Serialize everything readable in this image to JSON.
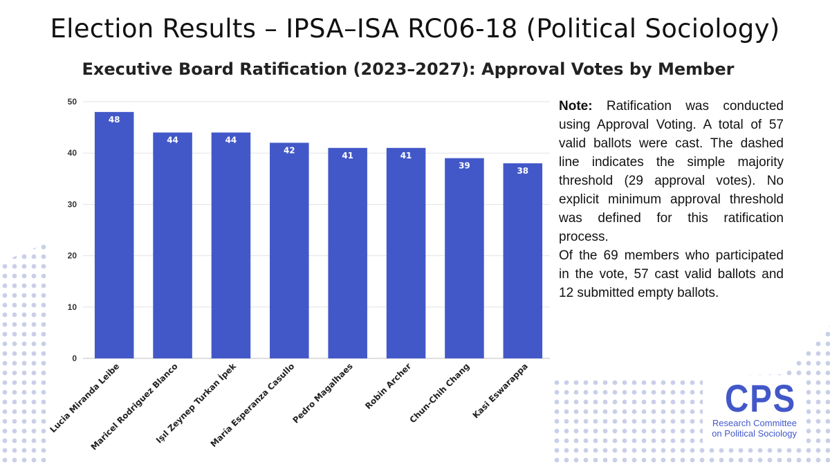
{
  "header": {
    "title": "Election Results – IPSA–ISA RC06-18 (Political Sociology)",
    "subtitle": "Executive Board Ratification (2023–2027): Approval Votes by Member"
  },
  "note": {
    "lead": "Note:",
    "paragraph_1": "Ratification was conducted using Approval Voting. A total of 57 valid ballots were cast. The dashed line indicates the simple majority threshold (29 approval votes). No explicit minimum approval threshold was defined for this ratification process.",
    "paragraph_2": "Of the 69 members who participated in the vote, 57 cast valid ballots and 12 submitted empty ballots."
  },
  "logo": {
    "mark": "CPS",
    "line_1": "Research Committee",
    "line_2": "on Political Sociology"
  },
  "chart_data": {
    "type": "bar",
    "categories": [
      "Lucia Miranda Leibe",
      "Maricel Rodriguez Blanco",
      "Işıl Zeynep Turkan İpek",
      "María Esperanza Casullo",
      "Pedro Magalhaes",
      "Robin Archer",
      "Chun-Chih Chang",
      "Kasi Eswarappa"
    ],
    "values": [
      48,
      44,
      44,
      42,
      41,
      41,
      39,
      38
    ],
    "ylim": [
      0,
      50
    ],
    "yticks": [
      0,
      10,
      20,
      30,
      40,
      50
    ],
    "data_labels": true,
    "grid": "horizontal",
    "legend": "none",
    "bar_color": "#4258c8"
  }
}
